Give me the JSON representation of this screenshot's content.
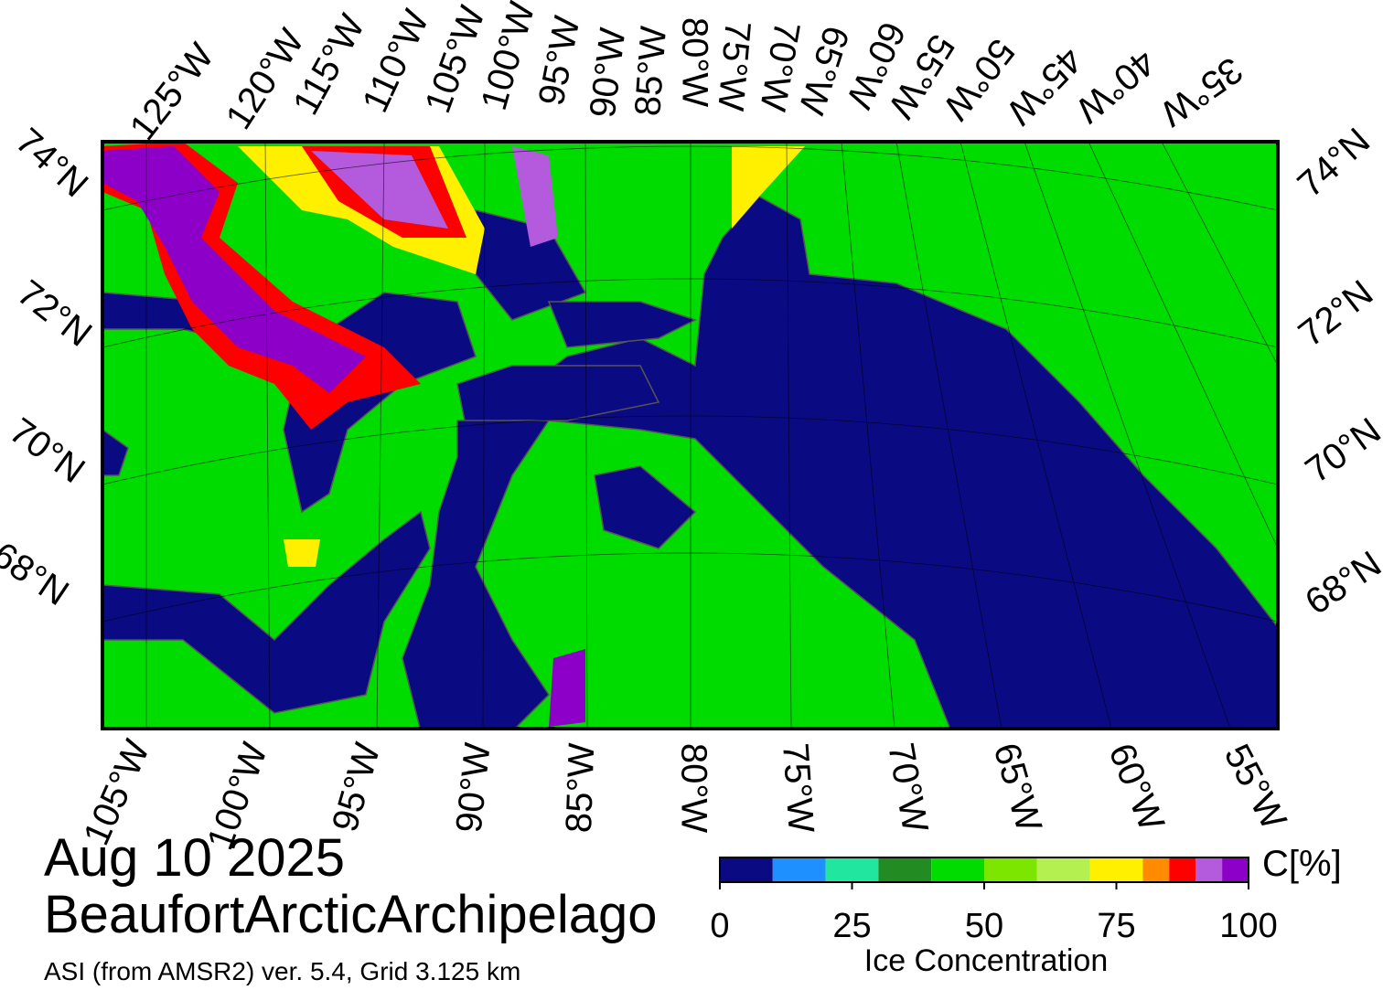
{
  "map": {
    "top_labels": [
      "125°W",
      "120°W",
      "115°W",
      "110°W",
      "105°W",
      "100°W",
      "95°W",
      "90°W",
      "85°W",
      "80°W",
      "75°W",
      "70°W",
      "65°W",
      "60°W",
      "55°W",
      "50°W",
      "45°W",
      "40°W",
      "35°W"
    ],
    "left_labels": [
      "74°N",
      "72°N",
      "70°N",
      "68°N"
    ],
    "right_labels": [
      "74°N",
      "72°N",
      "70°N",
      "68°N"
    ],
    "bottom_labels": [
      "105°W",
      "100°W",
      "95°W",
      "90°W",
      "85°W",
      "80°W",
      "75°W",
      "70°W",
      "65°W",
      "60°W",
      "55°W"
    ]
  },
  "date": "Aug 10 2025",
  "region": "BeaufortArcticArchipelago",
  "source": "ASI (from AMSR2) ver. 5.4,  Grid 3.125 km",
  "colorbar": {
    "unit": "C[%]",
    "title": "Ice Concentration",
    "bins": [
      0,
      10,
      20,
      30,
      40,
      50,
      60,
      70,
      80,
      85,
      90,
      95,
      100
    ],
    "colors": [
      "#0a0a82",
      "#1e90ff",
      "#20e6a0",
      "#228b22",
      "#00dc00",
      "#7ce600",
      "#b4f050",
      "#fff000",
      "#ff8c00",
      "#ff0000",
      "#b45adc",
      "#8c00c8"
    ],
    "ticks": [
      0,
      25,
      50,
      75,
      100
    ]
  }
}
